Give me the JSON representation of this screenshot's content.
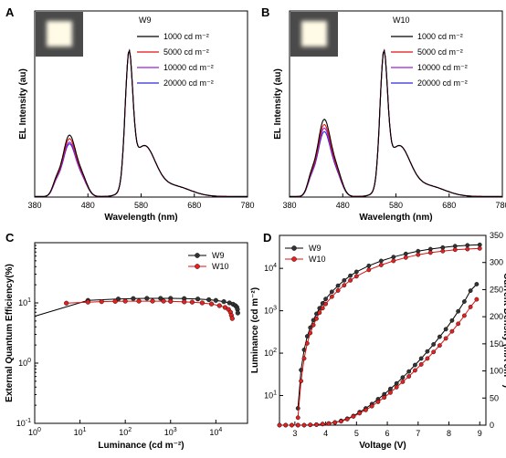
{
  "panel_letters": [
    "A",
    "B",
    "C",
    "D"
  ],
  "colors": {
    "black": "#000000",
    "red": "#e01010",
    "purple": "#9a22d6",
    "blue": "#2a2ad6",
    "marker_black": "#333333",
    "marker_red": "#e02222"
  },
  "chart_data": [
    {
      "id": "A",
      "type": "line",
      "inset": "photo-bright-square",
      "legend_title": "W9",
      "xlabel": "Wavelength (nm)",
      "ylabel": "EL Intensity (au)",
      "xlim": [
        380,
        780
      ],
      "xticks": [
        "380",
        "480",
        "580",
        "680",
        "780"
      ],
      "ylim": [
        0,
        1.05
      ],
      "series": [
        {
          "name": "1000 cd m⁻²",
          "color": "black",
          "blue_peak": 0.35
        },
        {
          "name": "5000 cd m⁻²",
          "color": "red",
          "blue_peak": 0.33
        },
        {
          "name": "10000 cd m⁻²",
          "color": "purple",
          "blue_peak": 0.31
        },
        {
          "name": "20000 cd m⁻²",
          "color": "blue",
          "blue_peak": 0.3
        }
      ]
    },
    {
      "id": "B",
      "type": "line",
      "inset": "photo-bright-square",
      "legend_title": "W10",
      "xlabel": "Wavelength (nm)",
      "ylabel": "EL Intensity (au)",
      "xlim": [
        380,
        780
      ],
      "xticks": [
        "380",
        "480",
        "580",
        "680",
        "780"
      ],
      "ylim": [
        0,
        1.05
      ],
      "series": [
        {
          "name": "1000 cd m⁻²",
          "color": "black",
          "blue_peak": 0.44
        },
        {
          "name": "5000 cd m⁻²",
          "color": "red",
          "blue_peak": 0.41
        },
        {
          "name": "10000 cd m⁻²",
          "color": "purple",
          "blue_peak": 0.39
        },
        {
          "name": "20000 cd m⁻²",
          "color": "blue",
          "blue_peak": 0.37
        }
      ]
    },
    {
      "id": "C",
      "type": "scatter",
      "xlabel": "Luminance (cd m⁻²)",
      "ylabel": "External Quantum Efficiency(%)",
      "xscale": "log",
      "yscale": "log",
      "xlim": [
        1,
        50000
      ],
      "ylim": [
        0.1,
        100
      ],
      "xticks": [
        {
          "v": 1,
          "b": "10",
          "e": "0"
        },
        {
          "v": 10,
          "b": "10",
          "e": "1"
        },
        {
          "v": 100,
          "b": "10",
          "e": "2"
        },
        {
          "v": 1000,
          "b": "10",
          "e": "3"
        },
        {
          "v": 10000,
          "b": "10",
          "e": "4"
        }
      ],
      "yticks": [
        {
          "v": 0.1,
          "b": "10",
          "e": "-1"
        },
        {
          "v": 1,
          "b": "10",
          "e": "0"
        },
        {
          "v": 10,
          "b": "10",
          "e": "1"
        }
      ],
      "legend": "top-right",
      "series": [
        {
          "name": "W9",
          "color": "black",
          "line_only_first_segment": true,
          "x": [
            1,
            15,
            70,
            150,
            300,
            600,
            1000,
            2000,
            4000,
            7000,
            10000,
            15000,
            20000,
            24000,
            27000,
            29000,
            30000,
            30500
          ],
          "y": [
            6.0,
            11.0,
            11.6,
            11.8,
            11.9,
            11.9,
            11.9,
            11.8,
            11.6,
            11.3,
            11.0,
            10.5,
            10.0,
            9.5,
            9.0,
            8.5,
            7.8,
            6.8
          ]
        },
        {
          "name": "W10",
          "color": "red",
          "x": [
            5,
            15,
            30,
            60,
            100,
            200,
            400,
            700,
            1000,
            2000,
            3000,
            5000,
            8000,
            12000,
            16000,
            19000,
            21000,
            22000,
            23000
          ],
          "y": [
            9.9,
            10.3,
            10.5,
            10.6,
            10.7,
            10.7,
            10.7,
            10.7,
            10.6,
            10.4,
            10.3,
            10.0,
            9.6,
            9.0,
            8.4,
            7.8,
            7.0,
            6.2,
            5.5
          ]
        }
      ]
    },
    {
      "id": "D",
      "type": "scatter",
      "xlabel": "Voltage (V)",
      "ylabel": "Luminance (cd m⁻²)",
      "y2label": "Current Density (mA cm⁻²)",
      "xlim": [
        2.5,
        9.2
      ],
      "xticks": [
        "3",
        "4",
        "5",
        "6",
        "7",
        "8",
        "9"
      ],
      "yscale": "log",
      "ylim": [
        2,
        60000
      ],
      "yticks": [
        {
          "v": 10,
          "b": "10",
          "e": "1"
        },
        {
          "v": 100,
          "b": "10",
          "e": "2"
        },
        {
          "v": 1000,
          "b": "10",
          "e": "3"
        },
        {
          "v": 10000,
          "b": "10",
          "e": "4"
        }
      ],
      "y2lim": [
        0,
        350
      ],
      "y2ticks": [
        "0",
        "50",
        "100",
        "150",
        "200",
        "250",
        "300",
        "350"
      ],
      "legend": "top-left",
      "series": [
        {
          "name": "W9",
          "color": "black",
          "axis": "left",
          "x": [
            3.1,
            3.2,
            3.3,
            3.4,
            3.5,
            3.6,
            3.7,
            3.8,
            3.9,
            4.0,
            4.2,
            4.4,
            4.6,
            4.8,
            5.0,
            5.4,
            5.8,
            6.2,
            6.6,
            7.0,
            7.4,
            7.8,
            8.2,
            8.6,
            9.0
          ],
          "y": [
            5,
            40,
            120,
            250,
            400,
            600,
            850,
            1150,
            1500,
            1900,
            2800,
            3900,
            5200,
            6700,
            8300,
            11500,
            15000,
            18500,
            22000,
            25500,
            28500,
            31000,
            33500,
            35000,
            36000
          ]
        },
        {
          "name": "W10",
          "color": "red",
          "axis": "left",
          "x": [
            3.1,
            3.2,
            3.3,
            3.4,
            3.5,
            3.6,
            3.7,
            3.8,
            3.9,
            4.0,
            4.2,
            4.4,
            4.6,
            4.8,
            5.0,
            5.4,
            5.8,
            6.2,
            6.6,
            7.0,
            7.4,
            7.8,
            8.2,
            8.6,
            9.0
          ],
          "y": [
            3,
            22,
            75,
            170,
            300,
            460,
            650,
            900,
            1150,
            1450,
            2150,
            3000,
            4000,
            5200,
            6500,
            9200,
            12000,
            15000,
            18000,
            21000,
            23500,
            25500,
            27500,
            28500,
            29500
          ]
        },
        {
          "name": "W9",
          "color": "black",
          "axis": "right",
          "legend": false,
          "x": [
            2.5,
            2.7,
            2.9,
            3.1,
            3.3,
            3.5,
            3.7,
            3.9,
            4.1,
            4.3,
            4.5,
            4.7,
            4.9,
            5.1,
            5.3,
            5.5,
            5.7,
            5.9,
            6.1,
            6.3,
            6.5,
            6.7,
            6.9,
            7.1,
            7.3,
            7.5,
            7.7,
            7.9,
            8.1,
            8.3,
            8.5,
            8.7,
            8.9
          ],
          "y": [
            0,
            0,
            0,
            0,
            0,
            0.5,
            1,
            2,
            3,
            5,
            8,
            12,
            17,
            24,
            31,
            39,
            48,
            57,
            67,
            77,
            88,
            99,
            111,
            123,
            136,
            149,
            163,
            177,
            193,
            210,
            228,
            248,
            260
          ]
        },
        {
          "name": "W10",
          "color": "red",
          "axis": "right",
          "legend": false,
          "x": [
            2.5,
            2.7,
            2.9,
            3.1,
            3.3,
            3.5,
            3.7,
            3.9,
            4.1,
            4.3,
            4.5,
            4.7,
            4.9,
            5.1,
            5.3,
            5.5,
            5.7,
            5.9,
            6.1,
            6.3,
            6.5,
            6.7,
            6.9,
            7.1,
            7.3,
            7.5,
            7.7,
            7.9,
            8.1,
            8.3,
            8.5,
            8.7,
            8.9
          ],
          "y": [
            0,
            0,
            0,
            0,
            0,
            0.5,
            1,
            2,
            3,
            5,
            7,
            11,
            16,
            22,
            28,
            35,
            43,
            51,
            60,
            70,
            80,
            90,
            101,
            112,
            123,
            135,
            147,
            160,
            173,
            187,
            202,
            218,
            232
          ]
        }
      ]
    }
  ]
}
